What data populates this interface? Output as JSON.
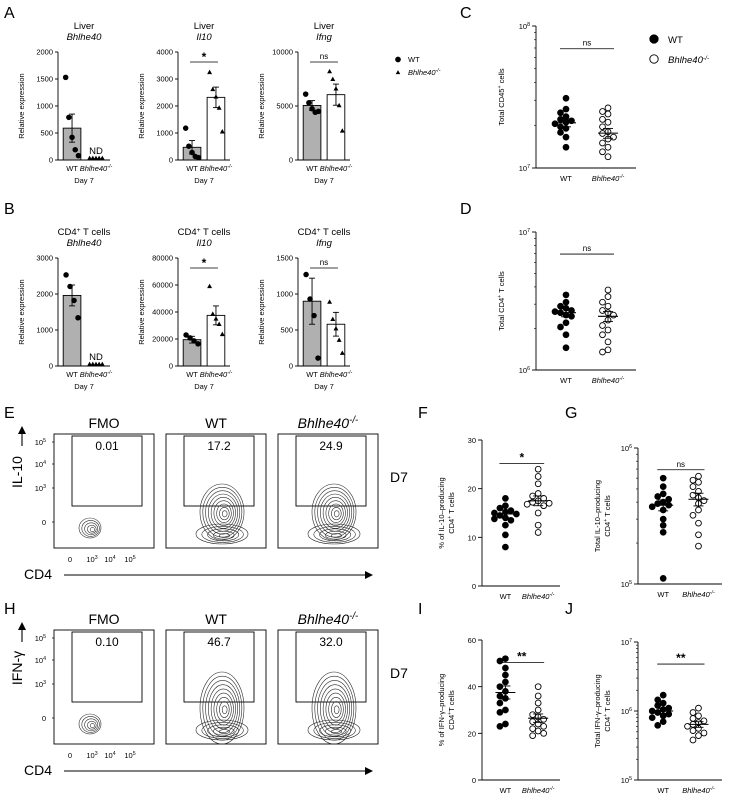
{
  "colors": {
    "wt_bar": "#b0b0b0",
    "ko_bar": "#ffffff",
    "ink": "#000000",
    "contour": "#2a2a2a"
  },
  "legend_top": [
    {
      "marker": "filled-circle",
      "label": "WT"
    },
    {
      "marker": "triangle",
      "label": "Bhlhe40",
      "sup": "-/-"
    }
  ],
  "legend_C": [
    {
      "marker": "filled-circle",
      "label": "WT"
    },
    {
      "marker": "open-circle",
      "label": "Bhlhe40",
      "sup": "-/-"
    }
  ],
  "chart_data": [
    {
      "panel": "A",
      "id": "A1",
      "type": "bar",
      "title": "Liver",
      "subtitle": "Bhlhe40",
      "ylabel": "Relative expression",
      "xlabel": "Day 7",
      "ylim": [
        0,
        2000
      ],
      "yticks": [
        0,
        500,
        1000,
        1500,
        2000
      ],
      "categories": [
        {
          "label": "WT"
        },
        {
          "label": "Bhlhe40",
          "sup": "-/-"
        }
      ],
      "series": [
        {
          "name": "WT",
          "mean": 590,
          "sem": 260,
          "points": [
            1530,
            790,
            420,
            190,
            80
          ]
        },
        {
          "name": "Bhlhe40-/-",
          "mean": 0,
          "sem": 0,
          "points": [
            0,
            0,
            0,
            0,
            0
          ]
        }
      ],
      "annotations": [
        {
          "text": "ND",
          "on": 1
        }
      ]
    },
    {
      "panel": "A",
      "id": "A2",
      "type": "bar",
      "title": "Liver",
      "subtitle": "Il10",
      "ylabel": "Relative expression",
      "xlabel": "Day 7",
      "ylim": [
        0,
        4000
      ],
      "yticks": [
        0,
        1000,
        2000,
        3000,
        4000
      ],
      "categories": [
        {
          "label": "WT"
        },
        {
          "label": "Bhlhe40",
          "sup": "-/-"
        }
      ],
      "series": [
        {
          "name": "WT",
          "mean": 470,
          "sem": 250,
          "points": [
            1180,
            510,
            280,
            130,
            90
          ]
        },
        {
          "name": "Bhlhe40-/-",
          "mean": 2320,
          "sem": 380,
          "points": [
            3250,
            2620,
            2340,
            1930,
            1050
          ]
        }
      ],
      "significance": "*"
    },
    {
      "panel": "A",
      "id": "A3",
      "type": "bar",
      "title": "Liver",
      "subtitle": "Ifng",
      "ylabel": "Relative expression",
      "xlabel": "Day 7",
      "ylim": [
        0,
        10000
      ],
      "yticks": [
        0,
        5000,
        10000
      ],
      "categories": [
        {
          "label": "WT"
        },
        {
          "label": "Bhlhe40",
          "sup": "-/-"
        }
      ],
      "series": [
        {
          "name": "WT",
          "mean": 5050,
          "sem": 450,
          "points": [
            6100,
            5300,
            4750,
            4420,
            4500
          ]
        },
        {
          "name": "Bhlhe40-/-",
          "mean": 6050,
          "sem": 980,
          "points": [
            8200,
            7480,
            6600,
            5050,
            2700
          ]
        }
      ],
      "significance": "ns"
    },
    {
      "panel": "B",
      "id": "B1",
      "type": "bar",
      "title": "CD4",
      "title_sup": "+",
      "title_rest": " T cells",
      "subtitle": "Bhlhe40",
      "ylabel": "Relative expression",
      "xlabel": "Day 7",
      "ylim": [
        0,
        3000
      ],
      "yticks": [
        0,
        1000,
        2000,
        3000
      ],
      "categories": [
        {
          "label": "WT"
        },
        {
          "label": "Bhlhe40",
          "sup": "-/-"
        }
      ],
      "series": [
        {
          "name": "WT",
          "mean": 1960,
          "sem": 290,
          "points": [
            2530,
            2210,
            1820,
            1340
          ]
        },
        {
          "name": "Bhlhe40-/-",
          "mean": 0,
          "sem": 0,
          "points": [
            0,
            0,
            0,
            0,
            0
          ]
        }
      ],
      "annotations": [
        {
          "text": "ND",
          "on": 1
        }
      ]
    },
    {
      "panel": "B",
      "id": "B2",
      "type": "bar",
      "title": "CD4",
      "title_sup": "+",
      "title_rest": " T cells",
      "subtitle": "Il10",
      "ylabel": "Relative expression",
      "xlabel": "Day 7",
      "ylim": [
        0,
        80000
      ],
      "yticks": [
        0,
        20000,
        40000,
        60000,
        80000
      ],
      "categories": [
        {
          "label": "WT"
        },
        {
          "label": "Bhlhe40",
          "sup": "-/-"
        }
      ],
      "series": [
        {
          "name": "WT",
          "mean": 19500,
          "sem": 2500,
          "points": [
            23000,
            20800,
            18600,
            16400
          ]
        },
        {
          "name": "Bhlhe40-/-",
          "mean": 37500,
          "sem": 7000,
          "points": [
            59000,
            38500,
            35000,
            31000,
            23500
          ]
        }
      ],
      "significance": "*"
    },
    {
      "panel": "B",
      "id": "B3",
      "type": "bar",
      "title": "CD4",
      "title_sup": "+",
      "title_rest": " T cells",
      "subtitle": "Ifng",
      "ylabel": "Relative expression",
      "xlabel": "Day 7",
      "ylim": [
        0,
        1500
      ],
      "yticks": [
        0,
        500,
        1000,
        1500
      ],
      "categories": [
        {
          "label": "WT"
        },
        {
          "label": "Bhlhe40",
          "sup": "-/-"
        }
      ],
      "series": [
        {
          "name": "WT",
          "mean": 900,
          "sem": 320,
          "points": [
            1270,
            930,
            700,
            110
          ]
        },
        {
          "name": "Bhlhe40-/-",
          "mean": 580,
          "sem": 165,
          "points": [
            890,
            650,
            520,
            360,
            180
          ]
        }
      ],
      "significance": "ns"
    },
    {
      "panel": "C",
      "id": "C",
      "type": "scatter",
      "scale": "log",
      "ylabel": "Total CD45",
      "ylabel_sup": "+",
      "ylabel_rest": " cells",
      "ylim": [
        10000000,
        100000000
      ],
      "ytick_labels": [
        {
          "b": "10",
          "e": "7"
        },
        {
          "b": "10",
          "e": "8"
        }
      ],
      "categories": [
        {
          "label": "WT"
        },
        {
          "label": "Bhlhe40",
          "sup": "-/-"
        }
      ],
      "series": [
        {
          "name": "WT",
          "marker": "filled",
          "mean": 20800000,
          "sem": 1300000,
          "points": [
            31000000,
            26000000,
            24500000,
            23000000,
            22000000,
            21500000,
            21000000,
            20500000,
            19500000,
            19000000,
            17800000,
            16500000,
            14000000
          ]
        },
        {
          "name": "Bhlhe40-/-",
          "marker": "open",
          "mean": 17600000,
          "sem": 1400000,
          "points": [
            26500000,
            25000000,
            24000000,
            22000000,
            21000000,
            19500000,
            18000000,
            17500000,
            16500000,
            16000000,
            15000000,
            14000000,
            13000000,
            12000000
          ]
        }
      ],
      "significance": "ns"
    },
    {
      "panel": "D",
      "id": "D",
      "type": "scatter",
      "scale": "log",
      "ylabel": "Total CD4",
      "ylabel_sup": "+",
      "ylabel_rest": " T cells",
      "ylim": [
        1000000,
        10000000
      ],
      "ytick_labels": [
        {
          "b": "10",
          "e": "6"
        },
        {
          "b": "10",
          "e": "7"
        }
      ],
      "categories": [
        {
          "label": "WT"
        },
        {
          "label": "Bhlhe40",
          "sup": "-/-"
        }
      ],
      "series": [
        {
          "name": "WT",
          "marker": "filled",
          "mean": 2600000,
          "sem": 170000,
          "points": [
            3500000,
            3100000,
            2900000,
            2800000,
            2700000,
            2650000,
            2600000,
            2500000,
            2450000,
            2200000,
            2050000,
            1800000,
            1450000
          ]
        },
        {
          "name": "Bhlhe40-/-",
          "marker": "open",
          "mean": 2450000,
          "sem": 200000,
          "points": [
            3800000,
            3400000,
            3100000,
            2900000,
            2700000,
            2600000,
            2500000,
            2300000,
            2100000,
            1950000,
            1800000,
            1600000,
            1400000,
            1350000
          ]
        }
      ],
      "significance": "ns"
    },
    {
      "panel": "F",
      "id": "F",
      "type": "scatter",
      "scale": "linear",
      "ylabel": "% of IL-10–producing",
      "ylabel2": "CD4",
      "ylabel2_sup": "+",
      "ylabel2_rest": " T cells",
      "ylim": [
        0,
        30
      ],
      "yticks": [
        0,
        10,
        20,
        30
      ],
      "categories": [
        {
          "label": "WT"
        },
        {
          "label": "Bhlhe40",
          "sup": "-/-"
        }
      ],
      "series": [
        {
          "name": "WT",
          "marker": "filled",
          "mean": 14.8,
          "sem": 0.8,
          "points": [
            18,
            16.5,
            16,
            15.5,
            15.2,
            15,
            14.8,
            14.5,
            14,
            13.8,
            13.5,
            12.5,
            10.5,
            8
          ]
        },
        {
          "name": "Bhlhe40-/-",
          "marker": "open",
          "mean": 17.5,
          "sem": 1.0,
          "points": [
            24,
            22.5,
            21,
            19,
            18.5,
            18,
            17.5,
            17.2,
            17,
            16.8,
            16.5,
            15,
            12.5,
            11
          ]
        }
      ],
      "significance": "*"
    },
    {
      "panel": "G",
      "id": "G",
      "type": "scatter",
      "scale": "log",
      "ylabel": "Total IL-10–producing",
      "ylabel2": "CD4",
      "ylabel2_sup": "+",
      "ylabel2_rest": " T cells",
      "ylim": [
        100000,
        1000000
      ],
      "ytick_labels": [
        {
          "b": "10",
          "e": "5"
        },
        {
          "b": "10",
          "e": "6"
        }
      ],
      "categories": [
        {
          "label": "WT"
        },
        {
          "label": "Bhlhe40",
          "sup": "-/-"
        }
      ],
      "series": [
        {
          "name": "WT",
          "marker": "filled",
          "mean": 380000,
          "sem": 35000,
          "points": [
            600000,
            520000,
            460000,
            440000,
            420000,
            400000,
            390000,
            380000,
            370000,
            350000,
            300000,
            270000,
            240000,
            110000
          ]
        },
        {
          "name": "Bhlhe40-/-",
          "marker": "open",
          "mean": 420000,
          "sem": 45000,
          "points": [
            620000,
            580000,
            560000,
            520000,
            480000,
            450000,
            430000,
            410000,
            390000,
            350000,
            320000,
            280000,
            230000,
            190000
          ]
        }
      ],
      "significance": "ns"
    },
    {
      "panel": "I",
      "id": "I",
      "type": "scatter",
      "scale": "linear",
      "ylabel": "% of IFN-γ–producing",
      "ylabel2": "CD4",
      "ylabel2_sup": "+",
      "ylabel2_rest": "T cells",
      "ylim": [
        0,
        60
      ],
      "yticks": [
        0,
        20,
        40,
        60
      ],
      "categories": [
        {
          "label": "WT"
        },
        {
          "label": "Bhlhe40",
          "sup": "-/-"
        }
      ],
      "series": [
        {
          "name": "WT",
          "marker": "filled",
          "mean": 37.5,
          "sem": 2.8,
          "points": [
            52,
            51,
            48,
            45,
            42,
            40,
            38,
            36,
            35,
            33,
            30,
            29,
            24,
            23
          ]
        },
        {
          "name": "Bhlhe40-/-",
          "marker": "open",
          "mean": 26.5,
          "sem": 1.8,
          "points": [
            40,
            36,
            33,
            30,
            28,
            27,
            26,
            25,
            24,
            23,
            22,
            21,
            20,
            19
          ]
        }
      ],
      "significance": "**"
    },
    {
      "panel": "J",
      "id": "J",
      "type": "scatter",
      "scale": "log",
      "ylabel": "Total IFN-γ–producing",
      "ylabel2": "CD4",
      "ylabel2_sup": "+",
      "ylabel2_rest": " T cells",
      "ylim": [
        100000,
        10000000
      ],
      "ytick_labels": [
        {
          "b": "10",
          "e": "5"
        },
        {
          "b": "10",
          "e": "6"
        },
        {
          "b": "10",
          "e": "7"
        }
      ],
      "categories": [
        {
          "label": "WT"
        },
        {
          "label": "Bhlhe40",
          "sup": "-/-"
        }
      ],
      "series": [
        {
          "name": "WT",
          "marker": "filled",
          "mean": 1000000,
          "sem": 80000,
          "points": [
            1700000,
            1450000,
            1300000,
            1200000,
            1100000,
            1050000,
            1000000,
            950000,
            900000,
            850000,
            800000,
            700000,
            620000
          ]
        },
        {
          "name": "Bhlhe40-/-",
          "marker": "open",
          "mean": 640000,
          "sem": 60000,
          "points": [
            1100000,
            950000,
            850000,
            780000,
            720000,
            680000,
            640000,
            600000,
            560000,
            520000,
            480000,
            440000,
            380000
          ]
        }
      ],
      "significance": "**"
    }
  ],
  "flow_E": {
    "panel": "E",
    "stain": "IL-10",
    "x_axis": "CD4",
    "timepoint": "D7",
    "yticks": [
      {
        "b": "10",
        "e": "5"
      },
      {
        "b": "10",
        "e": "4"
      },
      {
        "b": "10",
        "e": "3"
      },
      {
        "b": "0"
      }
    ],
    "xticks": [
      {
        "b": "0"
      },
      {
        "b": "10",
        "e": "3"
      },
      {
        "b": "10",
        "e": "4"
      },
      {
        "b": "10",
        "e": "5"
      }
    ],
    "plots": [
      {
        "title": "FMO",
        "gate_value": "0.01"
      },
      {
        "title": "WT",
        "gate_value": "17.2"
      },
      {
        "title": "Bhlhe40",
        "title_sup": "-/-",
        "gate_value": "24.9"
      }
    ]
  },
  "flow_H": {
    "panel": "H",
    "stain": "IFN-γ",
    "x_axis": "CD4",
    "timepoint": "D7",
    "yticks": [
      {
        "b": "10",
        "e": "5"
      },
      {
        "b": "10",
        "e": "4"
      },
      {
        "b": "10",
        "e": "3"
      },
      {
        "b": "0"
      }
    ],
    "xticks": [
      {
        "b": "0"
      },
      {
        "b": "10",
        "e": "3"
      },
      {
        "b": "10",
        "e": "4"
      },
      {
        "b": "10",
        "e": "5"
      }
    ],
    "plots": [
      {
        "title": "FMO",
        "gate_value": "0.10"
      },
      {
        "title": "WT",
        "gate_value": "46.7"
      },
      {
        "title": "Bhlhe40",
        "title_sup": "-/-",
        "gate_value": "32.0"
      }
    ]
  }
}
